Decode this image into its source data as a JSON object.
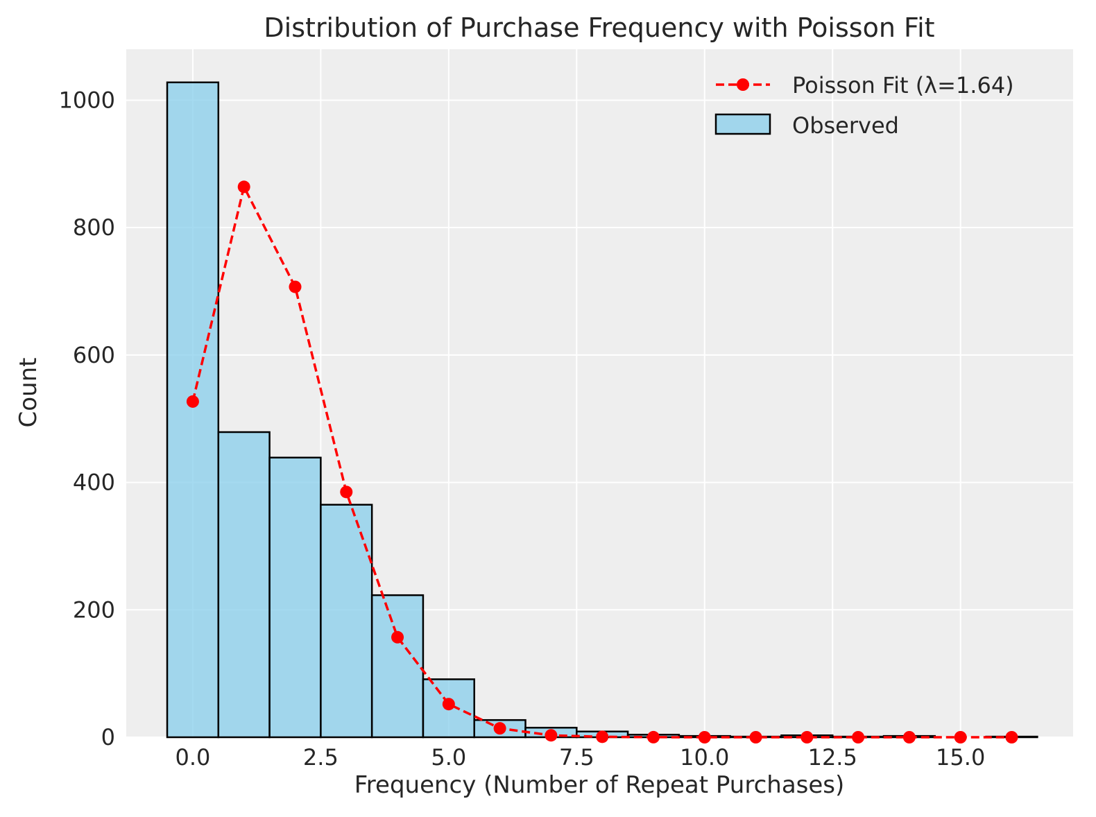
{
  "chart_data": {
    "type": "bar",
    "title": "Distribution of Purchase Frequency with Poisson Fit",
    "xlabel": "Frequency (Number of Repeat Purchases)",
    "ylabel": "Count",
    "xlim": [
      -1.3,
      17.2
    ],
    "ylim": [
      0,
      1080
    ],
    "xticks": [
      0.0,
      2.5,
      5.0,
      7.5,
      10.0,
      12.5,
      15.0
    ],
    "xtick_labels": [
      "0.0",
      "2.5",
      "5.0",
      "7.5",
      "10.0",
      "12.5",
      "15.0"
    ],
    "yticks": [
      0,
      200,
      400,
      600,
      800,
      1000
    ],
    "ytick_labels": [
      "0",
      "200",
      "400",
      "600",
      "800",
      "1000"
    ],
    "grid": true,
    "legend_position": "top-right",
    "series": [
      {
        "name": "Observed",
        "kind": "bar",
        "color": "#87CEEB",
        "edgecolor": "#000000",
        "bin_width": 1,
        "x": [
          0,
          1,
          2,
          3,
          4,
          5,
          6,
          7,
          8,
          9,
          10,
          11,
          12,
          13,
          14,
          15,
          16
        ],
        "values": [
          1028,
          479,
          439,
          365,
          223,
          91,
          27,
          15,
          9,
          4,
          2,
          1,
          3,
          1,
          2,
          0,
          1
        ]
      },
      {
        "name": "Poisson Fit (λ=1.64)",
        "kind": "line",
        "color": "#FF0000",
        "linestyle": "dashed",
        "marker": "circle",
        "x": [
          0,
          1,
          2,
          3,
          4,
          5,
          6,
          7,
          8,
          9,
          10,
          11,
          12,
          13,
          14,
          15,
          16
        ],
        "values": [
          527,
          864,
          707,
          385,
          157,
          52,
          14,
          3,
          0.7,
          0.1,
          0,
          0,
          0,
          0,
          0,
          0,
          0
        ]
      }
    ]
  }
}
